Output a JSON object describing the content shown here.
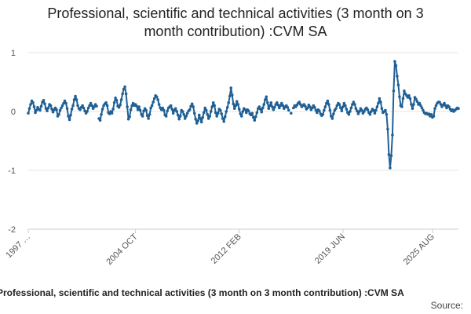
{
  "chart_data": {
    "type": "line",
    "title_lines": [
      "Professional, scientific and technical activities (3 month on 3",
      "month contribution) :CVM SA"
    ],
    "legend": "Professional, scientific and technical activities (3 month on 3 month contribution) :CVM SA",
    "source_label": "Source:",
    "ylim": [
      -2,
      1
    ],
    "y_ticks": [
      1,
      0,
      -1,
      -2
    ],
    "x_tick_labels": [
      "1997 …",
      "2004 OCT",
      "2012 FEB",
      "2019 JUN",
      "2025 AUG"
    ],
    "x_tick_positions": [
      0,
      91,
      179,
      267,
      343
    ],
    "series": [
      {
        "name": "Professional, scientific and technical activities (3 month on 3 month contribution) :CVM SA",
        "color": "#206095",
        "values": [
          -0.03,
          0.05,
          0.12,
          0.18,
          0.15,
          0.08,
          -0.02,
          0.02,
          0.07,
          0.04,
          0.02,
          0.09,
          0.16,
          0.19,
          0.13,
          0.05,
          0.01,
          0.06,
          0.12,
          0.1,
          0.04,
          -0.01,
          0.03,
          0.06,
          0.03,
          -0.08,
          -0.05,
          0.02,
          0.06,
          0.1,
          0.14,
          0.18,
          0.14,
          0.05,
          -0.08,
          -0.14,
          -0.06,
          0.04,
          0.1,
          0.2,
          0.26,
          0.2,
          0.1,
          0.05,
          0.03,
          0.07,
          0.1,
          0.06,
          0.01,
          -0.03,
          0.0,
          0.06,
          0.1,
          0.14,
          0.1,
          0.05,
          0.08,
          0.12,
          0.09,
          null,
          -0.12,
          -0.15,
          -0.05,
          0.04,
          0.1,
          0.13,
          0.15,
          0.1,
          -0.02,
          -0.04,
          0.0,
          -0.03,
          0.04,
          0.15,
          0.23,
          0.19,
          0.09,
          0.07,
          0.11,
          0.2,
          0.3,
          0.38,
          0.42,
          0.3,
          0.08,
          -0.13,
          -0.09,
          0.03,
          0.1,
          0.14,
          0.1,
          0.12,
          0.09,
          0.03,
          0.08,
          0.02,
          -0.05,
          -0.08,
          0.01,
          0.05,
          0.02,
          -0.07,
          -0.12,
          -0.05,
          0.06,
          0.1,
          0.16,
          0.22,
          0.27,
          0.25,
          0.2,
          0.12,
          0.06,
          0.03,
          0.06,
          0.02,
          -0.06,
          -0.08,
          0.01,
          0.06,
          0.08,
          0.1,
          0.04,
          -0.03,
          0.02,
          0.05,
          0.0,
          -0.06,
          -0.13,
          -0.08,
          0.02,
          0.0,
          -0.05,
          -0.12,
          -0.08,
          -0.03,
          0.01,
          0.03,
          0.09,
          0.13,
          0.08,
          -0.03,
          -0.13,
          -0.2,
          -0.16,
          -0.06,
          -0.12,
          -0.18,
          -0.1,
          -0.02,
          0.06,
          0.02,
          -0.05,
          -0.12,
          -0.08,
          0.0,
          0.08,
          0.15,
          0.1,
          -0.02,
          -0.08,
          -0.03,
          0.04,
          0.02,
          -0.04,
          -0.12,
          -0.17,
          -0.09,
          0.0,
          0.07,
          0.15,
          0.26,
          0.4,
          0.28,
          0.13,
          0.05,
          0.1,
          0.17,
          0.12,
          0.04,
          -0.04,
          -0.08,
          0.0,
          0.05,
          0.03,
          -0.02,
          0.03,
          0.01,
          -0.04,
          -0.06,
          -0.03,
          -0.1,
          -0.15,
          -0.09,
          -0.02,
          0.05,
          0.08,
          0.04,
          -0.01,
          0.06,
          0.12,
          0.2,
          0.25,
          0.15,
          0.05,
          0.1,
          0.15,
          0.08,
          0.03,
          0.07,
          0.12,
          0.15,
          0.11,
          0.06,
          0.1,
          0.14,
          0.1,
          0.05,
          0.08,
          0.1,
          0.07,
          0.02,
          null,
          -0.03,
          null,
          0.06,
          0.1,
          0.08,
          0.11,
          0.14,
          0.16,
          0.12,
          0.08,
          0.1,
          0.12,
          0.09,
          0.04,
          0.06,
          0.11,
          0.08,
          0.03,
          0.06,
          0.1,
          0.07,
          0.02,
          -0.02,
          0.03,
          0.01,
          -0.04,
          -0.07,
          -0.05,
          0.02,
          0.08,
          0.14,
          0.18,
          0.12,
          0.02,
          -0.08,
          -0.12,
          -0.04,
          0.02,
          0.05,
          0.1,
          0.14,
          0.12,
          0.06,
          0.01,
          0.08,
          0.14,
          0.1,
          0.04,
          -0.02,
          -0.05,
          0.0,
          0.06,
          0.12,
          0.16,
          0.12,
          0.05,
          0.01,
          -0.04,
          0.0,
          0.05,
          0.02,
          -0.03,
          0.0,
          0.04,
          0.06,
          0.03,
          -0.02,
          -0.05,
          0.0,
          0.04,
          0.02,
          -0.03,
          0.02,
          0.08,
          0.14,
          0.22,
          0.16,
          0.05,
          -0.02,
          0.0,
          0.02,
          -0.05,
          -0.3,
          -0.73,
          -0.96,
          -0.75,
          -0.4,
          0.35,
          0.85,
          0.78,
          0.6,
          0.45,
          0.25,
          0.1,
          0.08,
          0.22,
          0.35,
          0.3,
          0.27,
          0.24,
          0.27,
          0.22,
          0.12,
          0.05,
          0.12,
          0.24,
          0.21,
          0.17,
          0.12,
          0.14,
          0.1,
          0.06,
          0.02,
          -0.02,
          -0.04,
          -0.03,
          -0.05,
          -0.04,
          -0.08,
          -0.05,
          -0.1,
          -0.08,
          0.05,
          0.1,
          0.14,
          0.16,
          0.16,
          0.12,
          0.08,
          0.11,
          0.14,
          0.1,
          0.06,
          0.1,
          0.08,
          0.04,
          0.01,
          0.03,
          0.0,
          0.02,
          0.04,
          0.06,
          0.05
        ]
      }
    ]
  }
}
